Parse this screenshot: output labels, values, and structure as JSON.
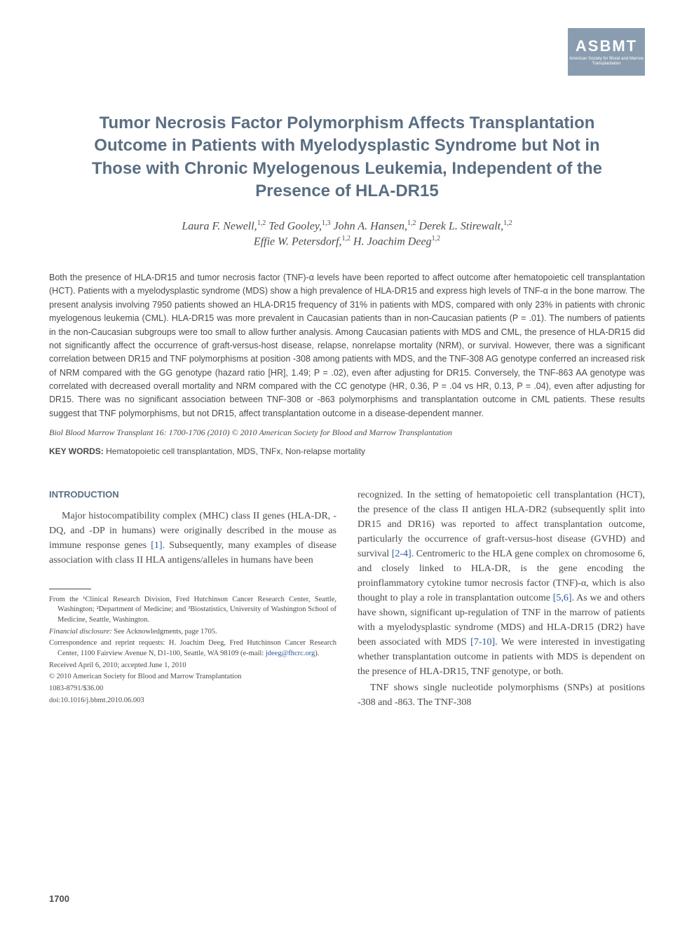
{
  "logo": {
    "main": "ASBMT",
    "sub": "American Society for Blood and Marrow Transplantation",
    "bg_color": "#8a9db0",
    "text_color": "#ffffff"
  },
  "title": "Tumor Necrosis Factor Polymorphism Affects Transplantation Outcome in Patients with Myelodysplastic Syndrome but Not in Those with Chronic Myelogenous Leukemia, Independent of the Presence of HLA-DR15",
  "authors_line1": "Laura F. Newell,",
  "authors_sup1": "1,2",
  "authors_line1b": " Ted Gooley,",
  "authors_sup2": "1,3",
  "authors_line1c": " John A. Hansen,",
  "authors_sup3": "1,2",
  "authors_line1d": " Derek L. Stirewalt,",
  "authors_sup4": "1,2",
  "authors_line2": "Effie W. Petersdorf,",
  "authors_sup5": "1,2",
  "authors_line2b": " H. Joachim Deeg",
  "authors_sup6": "1,2",
  "abstract": "Both the presence of HLA-DR15 and tumor necrosis factor (TNF)-α levels have been reported to affect outcome after hematopoietic cell transplantation (HCT). Patients with a myelodysplastic syndrome (MDS) show a high prevalence of HLA-DR15 and express high levels of TNF-α in the bone marrow. The present analysis involving 7950 patients showed an HLA-DR15 frequency of 31% in patients with MDS, compared with only 23% in patients with chronic myelogenous leukemia (CML). HLA-DR15 was more prevalent in Caucasian patients than in non-Caucasian patients (P = .01). The numbers of patients in the non-Caucasian subgroups were too small to allow further analysis. Among Caucasian patients with MDS and CML, the presence of HLA-DR15 did not significantly affect the occurrence of graft-versus-host disease, relapse, nonrelapse mortality (NRM), or survival. However, there was a significant correlation between DR15 and TNF polymorphisms at position -308 among patients with MDS, and the TNF-308 AG genotype conferred an increased risk of NRM compared with the GG genotype (hazard ratio [HR], 1.49; P = .02), even after adjusting for DR15. Conversely, the TNF-863 AA genotype was correlated with decreased overall mortality and NRM compared with the CC genotype (HR, 0.36, P = .04 vs HR, 0.13, P = .04), even after adjusting for DR15. There was no significant association between TNF-308 or -863 polymorphisms and transplantation outcome in CML patients. These results suggest that TNF polymorphisms, but not DR15, affect transplantation outcome in a disease-dependent manner.",
  "citation": "Biol Blood Marrow Transplant 16: 1700-1706 (2010) © 2010 American Society for Blood and Marrow Transplantation",
  "keywords_label": "KEY WORDS:",
  "keywords_text": " Hematopoietic cell transplantation, MDS, TNFx, Non-relapse mortality",
  "intro_heading": "INTRODUCTION",
  "intro_p1a": "Major histocompatibility complex (MHC) class II genes (HLA-DR, -DQ, and -DP in humans) were originally described in the mouse as immune response genes ",
  "intro_ref1": "[1]",
  "intro_p1b": ". Subsequently, many examples of disease association with class II HLA antigens/alleles in humans have been",
  "col2_p1a": "recognized. In the setting of hematopoietic cell transplantation (HCT), the presence of the class II antigen HLA-DR2 (subsequently split into DR15 and DR16) was reported to affect transplantation outcome, particularly the occurrence of graft-versus-host disease (GVHD) and survival ",
  "col2_ref1": "[2-4]",
  "col2_p1b": ". Centromeric to the HLA gene complex on chromosome 6, and closely linked to HLA-DR, is the gene encoding the proinflammatory cytokine tumor necrosis factor (TNF)-α, which is also thought to play a role in transplantation outcome ",
  "col2_ref2": "[5,6]",
  "col2_p1c": ". As we and others have shown, significant up-regulation of TNF in the marrow of patients with a myelodysplastic syndrome (MDS) and HLA-DR15 (DR2) have been associated with MDS ",
  "col2_ref3": "[7-10]",
  "col2_p1d": ". We were interested in investigating whether transplantation outcome in patients with MDS is dependent on the presence of HLA-DR15, TNF genotype, or both.",
  "col2_p2": "TNF shows single nucleotide polymorphisms (SNPs) at positions -308 and -863. The TNF-308",
  "footnotes": {
    "from": "From the ¹Clinical Research Division, Fred Hutchinson Cancer Research Center, Seattle, Washington; ²Department of Medicine; and ³Biostatistics, University of Washington School of Medicine, Seattle, Washington.",
    "disclosure_label": "Financial disclosure:",
    "disclosure_text": " See Acknowledgments, page 1705.",
    "corr": "Correspondence and reprint requests: H. Joachim Deeg, Fred Hutchinson Cancer Research Center, 1100 Fairview Avenue N, D1-100, Seattle, WA 98109 (e-mail: ",
    "email": "jdeeg@fhcrc.org",
    "corr_end": ").",
    "received": "Received April 6, 2010; accepted June 1, 2010",
    "copyright": "© 2010 American Society for Blood and Marrow Transplantation",
    "issn": "1083-8791/$36.00",
    "doi": "doi:10.1016/j.bbmt.2010.06.003"
  },
  "page_number": "1700",
  "colors": {
    "heading_color": "#5a6e82",
    "body_text": "#4a4a4a",
    "link_color": "#2a5a9a",
    "background": "#ffffff"
  },
  "typography": {
    "title_fontsize": 24,
    "title_family": "Arial",
    "abstract_fontsize": 12.5,
    "body_fontsize": 14,
    "footnote_fontsize": 10.5
  }
}
